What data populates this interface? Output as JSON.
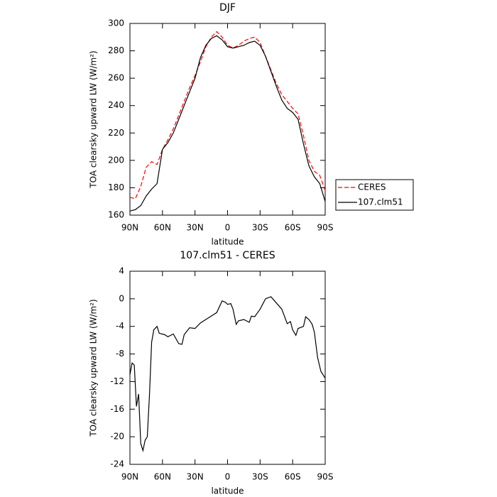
{
  "chart_data": [
    {
      "type": "line",
      "title": "DJF",
      "xlabel": "latitude",
      "ylabel": "TOA clearsky upward LW (W/m²)",
      "x": [
        90,
        85,
        80,
        75,
        70,
        65,
        60,
        55,
        50,
        45,
        40,
        35,
        30,
        25,
        20,
        15,
        10,
        5,
        0,
        -5,
        -10,
        -15,
        -20,
        -25,
        -30,
        -35,
        -40,
        -45,
        -50,
        -55,
        -60,
        -65,
        -70,
        -75,
        -80,
        -85,
        -90
      ],
      "series": [
        {
          "name": "CERES",
          "color": "#ff0000",
          "style": "dashed",
          "values": [
            173,
            172,
            181,
            195,
            199,
            197,
            208,
            215,
            223,
            233,
            243,
            253,
            262,
            272,
            283,
            290,
            294,
            290,
            284,
            282,
            284,
            287,
            289,
            290,
            286,
            276,
            266,
            256,
            248,
            243,
            238,
            234,
            218,
            200,
            192,
            189,
            178
          ]
        },
        {
          "name": "107.clm51",
          "color": "#000000",
          "style": "solid",
          "values": [
            163,
            164,
            167,
            174,
            179,
            183,
            208,
            213,
            220,
            230,
            240,
            250,
            260,
            275,
            284,
            289,
            291,
            288,
            283,
            282,
            283,
            284,
            286,
            287,
            284,
            276,
            265,
            254,
            244,
            238,
            235,
            230,
            212,
            196,
            188,
            183,
            170
          ]
        }
      ],
      "xlim": [
        90,
        -90
      ],
      "xticks": [
        {
          "value": 90,
          "label": "90N"
        },
        {
          "value": 60,
          "label": "60N"
        },
        {
          "value": 30,
          "label": "30N"
        },
        0,
        {
          "value": -30,
          "label": "30S"
        },
        {
          "value": -60,
          "label": "60S"
        },
        {
          "value": -90,
          "label": "90S"
        }
      ],
      "ylim": [
        160,
        300
      ],
      "yticks": [
        160,
        180,
        200,
        220,
        240,
        260,
        280,
        300
      ],
      "legend": "right"
    },
    {
      "type": "line",
      "title": "107.clm51 - CERES",
      "xlabel": "latitude",
      "ylabel": "TOA clearsky upward LW (W/m²)",
      "x": [
        90,
        88,
        86,
        84,
        82,
        80,
        78,
        76,
        74,
        72,
        70,
        68,
        65,
        63,
        58,
        55,
        50,
        45,
        42,
        40,
        35,
        30,
        25,
        20,
        15,
        10,
        5,
        2,
        0,
        -3,
        -5,
        -8,
        -10,
        -15,
        -20,
        -22,
        -25,
        -30,
        -35,
        -40,
        -45,
        -50,
        -55,
        -58,
        -60,
        -63,
        -65,
        -70,
        -72,
        -75,
        -78,
        -80,
        -83,
        -86,
        -90
      ],
      "series": [
        {
          "color": "#000000",
          "style": "solid",
          "values": [
            -11,
            -9.3,
            -9.6,
            -15.6,
            -13.8,
            -21,
            -22,
            -20.5,
            -20,
            -14,
            -6.3,
            -4.5,
            -4,
            -5,
            -5.2,
            -5.5,
            -5.1,
            -6.5,
            -6.6,
            -5.2,
            -4.2,
            -4.3,
            -3.5,
            -3,
            -2.5,
            -2,
            -0.3,
            -0.5,
            -0.8,
            -0.7,
            -1.5,
            -3.7,
            -3.2,
            -3,
            -3.4,
            -2.5,
            -2.6,
            -1.5,
            0,
            0.3,
            -0.6,
            -1.5,
            -3.6,
            -3.3,
            -4.5,
            -5.3,
            -4.3,
            -4,
            -2.6,
            -3,
            -3.7,
            -4.8,
            -8.5,
            -10.5,
            -11.5
          ]
        }
      ],
      "xlim": [
        90,
        -90
      ],
      "xticks": [
        {
          "value": 90,
          "label": "90N"
        },
        {
          "value": 60,
          "label": "60N"
        },
        {
          "value": 30,
          "label": "30N"
        },
        0,
        {
          "value": -30,
          "label": "30S"
        },
        {
          "value": -60,
          "label": "60S"
        },
        {
          "value": -90,
          "label": "90S"
        }
      ],
      "ylim": [
        -24,
        4
      ],
      "yticks": [
        -24,
        -20,
        -16,
        -12,
        -8,
        -4,
        0,
        4
      ]
    }
  ]
}
